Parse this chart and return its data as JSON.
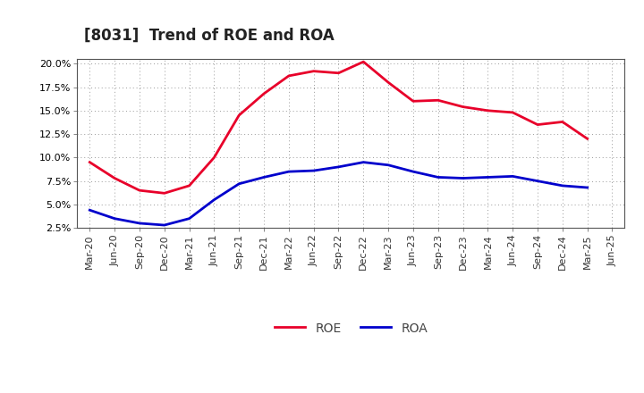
{
  "title": "[8031]  Trend of ROE and ROA",
  "labels": [
    "Mar-20",
    "Jun-20",
    "Sep-20",
    "Dec-20",
    "Mar-21",
    "Jun-21",
    "Sep-21",
    "Dec-21",
    "Mar-22",
    "Jun-22",
    "Sep-22",
    "Dec-22",
    "Mar-23",
    "Jun-23",
    "Sep-23",
    "Dec-23",
    "Mar-24",
    "Jun-24",
    "Sep-24",
    "Dec-24",
    "Mar-25",
    "Jun-25"
  ],
  "ROE": [
    9.5,
    7.8,
    6.5,
    6.2,
    7.0,
    10.0,
    14.5,
    16.8,
    18.7,
    19.2,
    19.0,
    20.2,
    18.0,
    16.0,
    16.1,
    15.4,
    15.0,
    14.8,
    13.5,
    13.8,
    12.0,
    null
  ],
  "ROA": [
    4.4,
    3.5,
    3.0,
    2.8,
    3.5,
    5.5,
    7.2,
    7.9,
    8.5,
    8.6,
    9.0,
    9.5,
    9.2,
    8.5,
    7.9,
    7.8,
    7.9,
    8.0,
    7.5,
    7.0,
    6.8,
    null
  ],
  "ROE_color": "#e8002a",
  "ROA_color": "#0000cc",
  "bg_color": "#ffffff",
  "plot_bg_color": "#ffffff",
  "grid_color": "#999999",
  "ylim": [
    2.5,
    20.5
  ],
  "yticks": [
    2.5,
    5.0,
    7.5,
    10.0,
    12.5,
    15.0,
    17.5,
    20.0
  ],
  "title_fontsize": 12,
  "legend_fontsize": 10,
  "tick_fontsize": 8,
  "line_width": 2.0
}
